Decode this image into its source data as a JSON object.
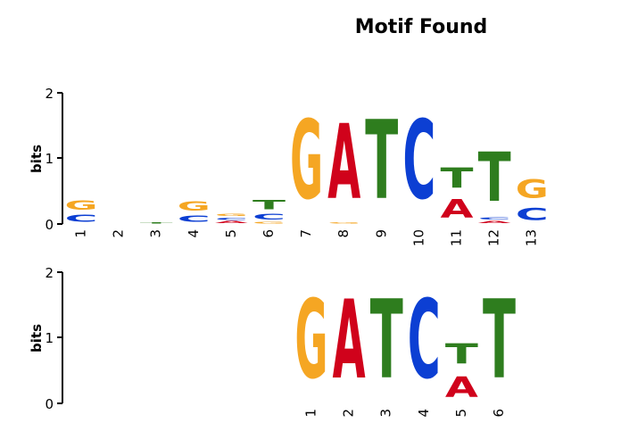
{
  "title": "Motif Found",
  "colors": {
    "A": "#d0021b",
    "C": "#0c3fd3",
    "G": "#f5a623",
    "T": "#2e7d1e"
  },
  "chart_data": [
    {
      "type": "sequence-logo",
      "ylabel": "bits",
      "ylim": [
        0,
        2
      ],
      "yticks": [
        "0",
        "1",
        "2"
      ],
      "positions": [
        {
          "label": "1",
          "letters": [
            {
              "l": "C",
              "h": 0.17
            },
            {
              "l": "G",
              "h": 0.23
            }
          ]
        },
        {
          "label": "2",
          "letters": []
        },
        {
          "label": "3",
          "letters": [
            {
              "l": "T",
              "h": 0.02
            }
          ]
        },
        {
          "label": "4",
          "letters": [
            {
              "l": "C",
              "h": 0.16
            },
            {
              "l": "G",
              "h": 0.23
            }
          ]
        },
        {
          "label": "5",
          "letters": [
            {
              "l": "A",
              "h": 0.05
            },
            {
              "l": "C",
              "h": 0.06
            },
            {
              "l": "G",
              "h": 0.05
            }
          ]
        },
        {
          "label": "6",
          "letters": [
            {
              "l": "G",
              "h": 0.04
            },
            {
              "l": "C",
              "h": 0.14
            },
            {
              "l": "T",
              "h": 0.22
            }
          ]
        },
        {
          "label": "7",
          "letters": [
            {
              "l": "G",
              "h": 1.93
            }
          ]
        },
        {
          "label": "8",
          "letters": [
            {
              "l": "G",
              "h": 0.02
            },
            {
              "l": "A",
              "h": 1.83
            }
          ]
        },
        {
          "label": "9",
          "letters": [
            {
              "l": "T",
              "h": 1.93
            }
          ]
        },
        {
          "label": "10",
          "letters": [
            {
              "l": "C",
              "h": 1.93
            }
          ]
        },
        {
          "label": "11",
          "letters": [
            {
              "l": "A",
              "h": 0.45
            },
            {
              "l": "T",
              "h": 0.5
            }
          ]
        },
        {
          "label": "12",
          "letters": [
            {
              "l": "A",
              "h": 0.06
            },
            {
              "l": "C",
              "h": 0.05
            },
            {
              "l": "T",
              "h": 1.2
            }
          ]
        },
        {
          "label": "13",
          "letters": [
            {
              "l": "C",
              "h": 0.3
            },
            {
              "l": "G",
              "h": 0.46
            }
          ]
        }
      ]
    },
    {
      "type": "sequence-logo",
      "ylabel": "bits",
      "ylim": [
        0,
        2
      ],
      "yticks": [
        "0",
        "1",
        "2"
      ],
      "positions": [
        {
          "label": "1",
          "letters": [
            {
              "l": "G",
              "h": 1.93
            }
          ]
        },
        {
          "label": "2",
          "letters": [
            {
              "l": "A",
              "h": 1.93
            }
          ]
        },
        {
          "label": "3",
          "letters": [
            {
              "l": "T",
              "h": 1.93
            }
          ]
        },
        {
          "label": "4",
          "letters": [
            {
              "l": "C",
              "h": 1.93
            }
          ]
        },
        {
          "label": "5",
          "letters": [
            {
              "l": "A",
              "h": 0.5
            },
            {
              "l": "T",
              "h": 0.5
            }
          ]
        },
        {
          "label": "6",
          "letters": [
            {
              "l": "T",
              "h": 1.93
            }
          ]
        }
      ]
    }
  ]
}
